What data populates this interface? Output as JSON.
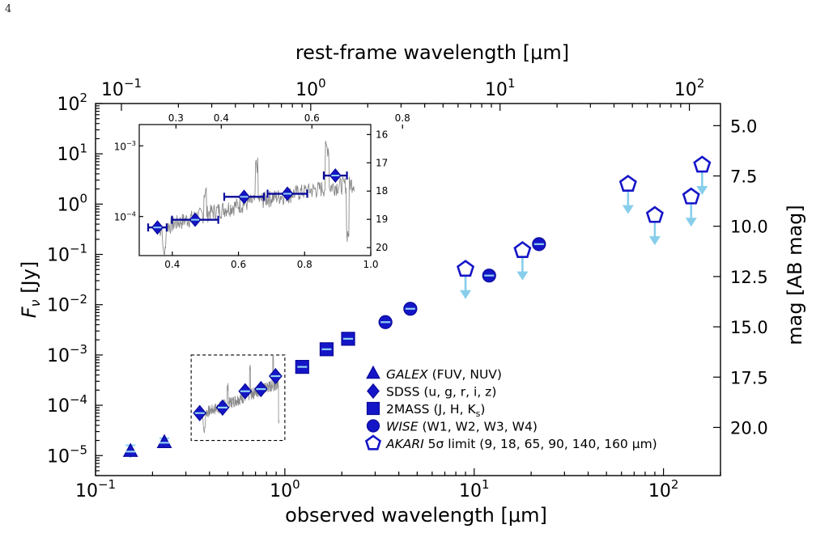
{
  "page": {
    "number": "4"
  },
  "colors": {
    "marker_fill": "#1515c8",
    "marker_edge": "#0a0a9a",
    "light_bar": "#8fd3f0",
    "limit_arrow": "#87ceeb",
    "spectrum": "#8a8a8a",
    "errorbar": "#0a0a9a"
  },
  "chart_data": {
    "type": "scatter",
    "xlabel": "observed wavelength [μm]",
    "ylabel": "F_ν [Jy]",
    "top_xlabel": "rest-frame wavelength [μm]",
    "right_ylabel": "mag [AB mag]",
    "xscale": "log",
    "yscale": "log",
    "xlim": [
      0.1,
      200
    ],
    "ylim": [
      4e-06,
      100
    ],
    "x_tick_labels": [
      "10",
      "10"
    ],
    "x_tick_exponents": [
      "−1",
      "0",
      "1",
      "2"
    ],
    "y_tick_exponents": [
      "−5",
      "−4",
      "−3",
      "−2",
      "−1",
      "0",
      "1",
      "2"
    ],
    "top_x_tick_values": [
      0.1,
      1,
      10,
      100
    ],
    "top_x_tick_exponents": [
      "−1",
      "0",
      "1",
      "2"
    ],
    "right_y_ticks": [
      "5.0",
      "7.5",
      "10.0",
      "12.5",
      "15.0",
      "17.5",
      "20.0"
    ],
    "right_y_values": [
      5.0,
      7.5,
      10.0,
      12.5,
      15.0,
      17.5,
      20.0
    ],
    "rest_frame_factor": 1.37,
    "series": [
      {
        "name": "GALEX",
        "marker": "triangle",
        "points": [
          {
            "x": 0.153,
            "y": 1.2e-05,
            "yerr": [
              3e-06,
              4e-06
            ]
          },
          {
            "x": 0.231,
            "y": 1.8e-05,
            "yerr": [
              3.5e-06,
              4e-06
            ]
          }
        ]
      },
      {
        "name": "SDSS",
        "marker": "diamond",
        "points": [
          {
            "x": 0.355,
            "y": 7e-05
          },
          {
            "x": 0.469,
            "y": 9e-05
          },
          {
            "x": 0.617,
            "y": 0.00019
          },
          {
            "x": 0.748,
            "y": 0.00021
          },
          {
            "x": 0.893,
            "y": 0.00038
          }
        ]
      },
      {
        "name": "2MASS",
        "marker": "square",
        "points": [
          {
            "x": 1.235,
            "y": 0.00058
          },
          {
            "x": 1.662,
            "y": 0.0013
          },
          {
            "x": 2.159,
            "y": 0.0021
          }
        ]
      },
      {
        "name": "WISE",
        "marker": "circle",
        "points": [
          {
            "x": 3.4,
            "y": 0.0045
          },
          {
            "x": 4.6,
            "y": 0.0083
          },
          {
            "x": 12.0,
            "y": 0.038
          },
          {
            "x": 22.0,
            "y": 0.16
          }
        ]
      },
      {
        "name": "AKARI",
        "marker": "pentagon",
        "upper_limit": true,
        "points": [
          {
            "x": 9,
            "y": 0.051
          },
          {
            "x": 18,
            "y": 0.12
          },
          {
            "x": 65,
            "y": 2.5
          },
          {
            "x": 90,
            "y": 0.6
          },
          {
            "x": 140,
            "y": 1.4
          },
          {
            "x": 160,
            "y": 6.0
          }
        ]
      }
    ],
    "legend": {
      "placement": "lower-right",
      "entries": [
        {
          "marker": "triangle",
          "name": "GALEX",
          "rest": " (FUV, NUV)",
          "italic_parts": [
            "GALEX",
            "FUV",
            "NUV"
          ]
        },
        {
          "marker": "diamond",
          "name": "SDSS",
          "rest": " (u, g, r, i, z)"
        },
        {
          "marker": "square",
          "name": "2MASS",
          "rest": " (J, H, K",
          "sub": "s",
          "tail": ")"
        },
        {
          "marker": "circle",
          "name": "WISE",
          "rest": " (W1, W2, W3, W4)"
        },
        {
          "marker": "pentagon",
          "name": "AKARI",
          "rest": " 5σ limit (9, 18, 65, 90, 140, 160 μm)"
        }
      ]
    },
    "zoom_box": {
      "xlim": [
        0.32,
        1.0
      ],
      "ylim": [
        2e-05,
        0.001
      ]
    },
    "inset": {
      "type": "line",
      "xlim": [
        0.3,
        1.0
      ],
      "ylim": [
        2.8e-05,
        0.002
      ],
      "x_ticks": [
        "0.4",
        "0.6",
        "0.8",
        "1.0"
      ],
      "x_tick_values": [
        0.4,
        0.6,
        0.8,
        1.0
      ],
      "top_x_ticks": [
        "0.3",
        "0.4",
        "0.6",
        "0.8"
      ],
      "top_x_tick_values": [
        0.3,
        0.4,
        0.6,
        0.8
      ],
      "y_tick_exponents": [
        "−4",
        "−3"
      ],
      "right_y_ticks": [
        "16",
        "17",
        "18",
        "19",
        "20"
      ],
      "right_y_values": [
        16,
        17,
        18,
        19,
        20
      ],
      "points": [
        {
          "x": 0.355,
          "y": 7e-05,
          "xerr": 0.028
        },
        {
          "x": 0.469,
          "y": 9e-05,
          "xerr": 0.07
        },
        {
          "x": 0.617,
          "y": 0.00019,
          "xerr": 0.06
        },
        {
          "x": 0.748,
          "y": 0.00021,
          "xerr": 0.06
        },
        {
          "x": 0.893,
          "y": 0.00038,
          "xerr": 0.035
        }
      ]
    }
  }
}
